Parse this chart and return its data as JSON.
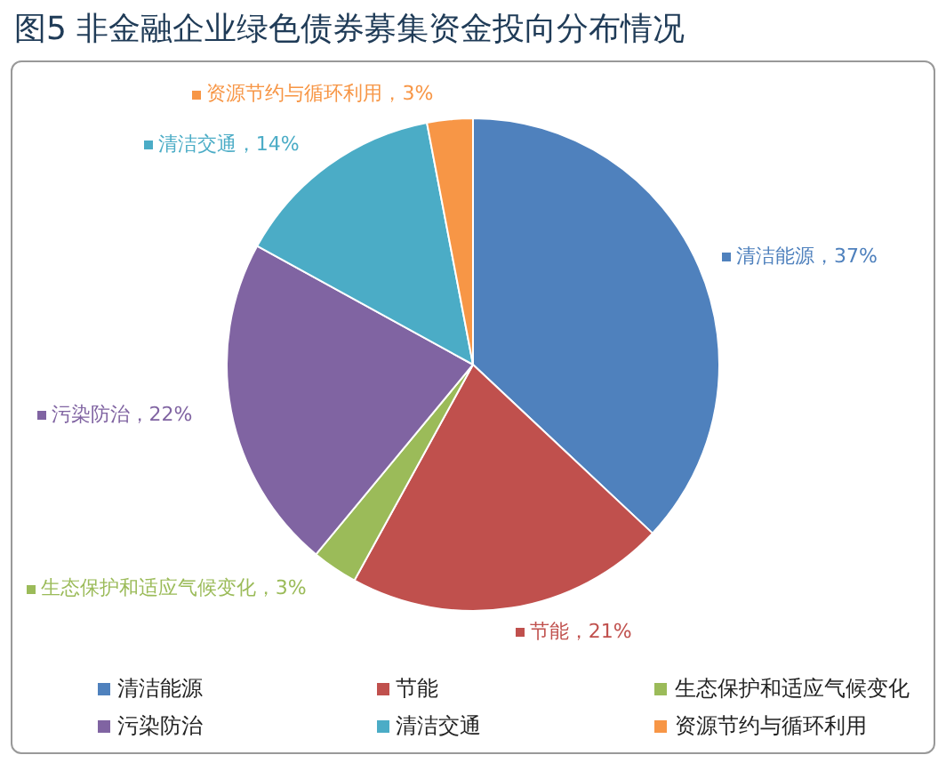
{
  "chart_data": {
    "type": "pie",
    "title": "图5 非金融企业绿色债券募集资金投向分布情况",
    "categories": [
      "清洁能源",
      "节能",
      "生态保护和适应气候变化",
      "污染防治",
      "清洁交通",
      "资源节约与循环利用"
    ],
    "values": [
      37,
      21,
      3,
      22,
      14,
      3
    ],
    "colors": [
      "#4f81bd",
      "#c0504d",
      "#9bbb59",
      "#8064a2",
      "#4bacc6",
      "#f79646"
    ],
    "value_labels": [
      "清洁能源，37%",
      "节能，21%",
      "生态保护和适应气候变化，3%",
      "污染防治，22%",
      "清洁交通，14%",
      "资源节约与循环利用，3%"
    ],
    "legend": "bottom"
  }
}
